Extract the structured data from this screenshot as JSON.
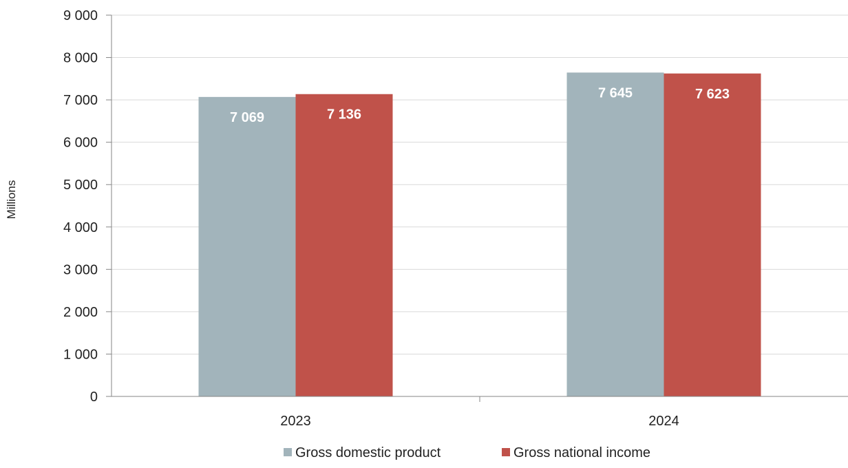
{
  "chart_data": {
    "type": "bar",
    "title": "",
    "xlabel": "",
    "ylabel": "Millions",
    "categories": [
      "2023",
      "2024"
    ],
    "series": [
      {
        "name": "Gross domestic product",
        "values": [
          7069,
          7645
        ],
        "labels": [
          "7 069",
          "7 645"
        ],
        "color": "#a2b4bb"
      },
      {
        "name": "Gross national income",
        "values": [
          7136,
          7623
        ],
        "labels": [
          "7 136",
          "7 623"
        ],
        "color": "#c0524a"
      }
    ],
    "ylim": [
      0,
      9000
    ],
    "yticks": [
      0,
      1000,
      2000,
      3000,
      4000,
      5000,
      6000,
      7000,
      8000,
      9000
    ],
    "ytick_labels": [
      "0",
      "1 000",
      "2 000",
      "3 000",
      "4 000",
      "5 000",
      "6 000",
      "7 000",
      "8 000",
      "9 000"
    ],
    "grid": true,
    "legend_position": "bottom"
  }
}
